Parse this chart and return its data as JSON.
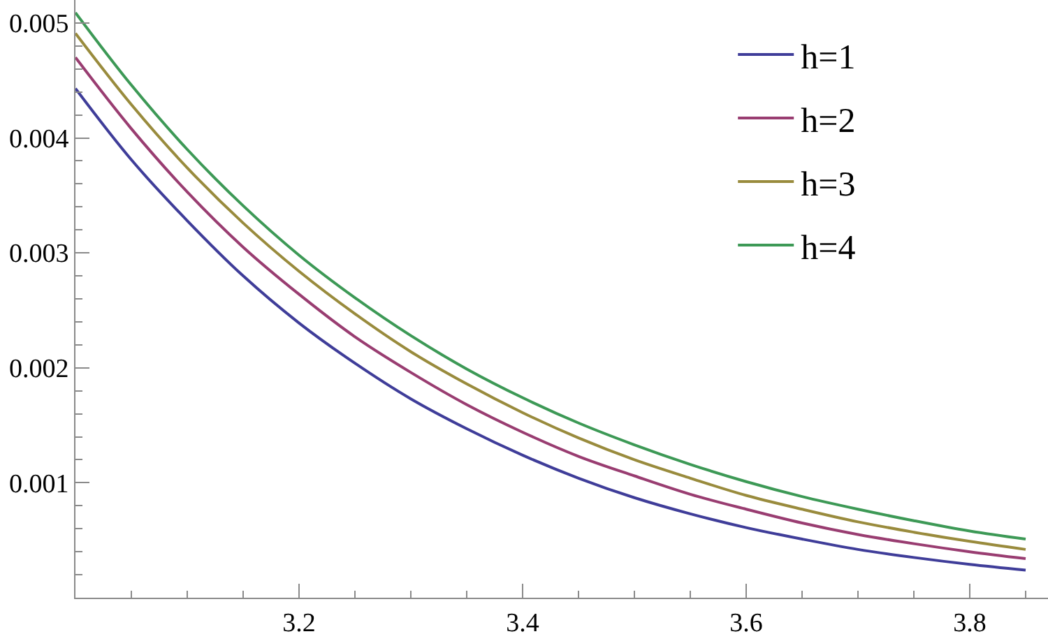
{
  "chart_data": {
    "type": "line",
    "x": [
      3.0,
      3.05,
      3.1,
      3.15,
      3.2,
      3.25,
      3.3,
      3.35,
      3.4,
      3.45,
      3.5,
      3.55,
      3.6,
      3.65,
      3.7,
      3.75,
      3.8,
      3.85
    ],
    "series": [
      {
        "name": "h=1",
        "color": "#3f3d99",
        "values": [
          0.00443,
          0.00381,
          0.00328,
          0.0028,
          0.00239,
          0.00204,
          0.00173,
          0.00147,
          0.00124,
          0.00104,
          0.00087,
          0.00073,
          0.00061,
          0.00051,
          0.00042,
          0.00035,
          0.00029,
          0.00024
        ]
      },
      {
        "name": "h=2",
        "color": "#993d71",
        "values": [
          0.0047,
          0.00408,
          0.00353,
          0.00305,
          0.00264,
          0.00227,
          0.00196,
          0.00168,
          0.00144,
          0.00123,
          0.00106,
          0.0009,
          0.00077,
          0.00065,
          0.00055,
          0.00047,
          0.0004,
          0.00034
        ]
      },
      {
        "name": "h=3",
        "color": "#998b3d",
        "values": [
          0.00491,
          0.00429,
          0.00374,
          0.00326,
          0.00284,
          0.00247,
          0.00214,
          0.00186,
          0.00161,
          0.00139,
          0.0012,
          0.00104,
          0.00089,
          0.00077,
          0.00066,
          0.00057,
          0.00049,
          0.00042
        ]
      },
      {
        "name": "h=4",
        "color": "#3d9956",
        "values": [
          0.00509,
          0.00446,
          0.0039,
          0.00341,
          0.00298,
          0.00261,
          0.00228,
          0.00199,
          0.00174,
          0.00152,
          0.00133,
          0.00116,
          0.00101,
          0.00088,
          0.00077,
          0.00067,
          0.00058,
          0.00051
        ]
      }
    ],
    "xlim": [
      3.0,
      3.87
    ],
    "ylim": [
      0,
      0.0052
    ],
    "xticks": [
      {
        "value": 3.05,
        "label": null
      },
      {
        "value": 3.1,
        "label": null
      },
      {
        "value": 3.15,
        "label": null
      },
      3.2,
      {
        "value": 3.25,
        "label": null
      },
      {
        "value": 3.3,
        "label": null
      },
      {
        "value": 3.35,
        "label": null
      },
      3.4,
      {
        "value": 3.45,
        "label": null
      },
      {
        "value": 3.5,
        "label": null
      },
      {
        "value": 3.55,
        "label": null
      },
      3.6,
      {
        "value": 3.65,
        "label": null
      },
      {
        "value": 3.7,
        "label": null
      },
      {
        "value": 3.75,
        "label": null
      },
      3.8,
      {
        "value": 3.85,
        "label": null
      }
    ],
    "yticks": [
      {
        "value": 0.0002,
        "label": null
      },
      {
        "value": 0.0004,
        "label": null
      },
      {
        "value": 0.0006,
        "label": null
      },
      {
        "value": 0.0008,
        "label": null
      },
      0.001,
      {
        "value": 0.0012,
        "label": null
      },
      {
        "value": 0.0014,
        "label": null
      },
      {
        "value": 0.0016,
        "label": null
      },
      {
        "value": 0.0018,
        "label": null
      },
      0.002,
      {
        "value": 0.0022,
        "label": null
      },
      {
        "value": 0.0024,
        "label": null
      },
      {
        "value": 0.0026,
        "label": null
      },
      {
        "value": 0.0028,
        "label": null
      },
      0.003,
      {
        "value": 0.0032,
        "label": null
      },
      {
        "value": 0.0034,
        "label": null
      },
      {
        "value": 0.0036,
        "label": null
      },
      {
        "value": 0.0038,
        "label": null
      },
      0.004,
      {
        "value": 0.0042,
        "label": null
      },
      {
        "value": 0.0044,
        "label": null
      },
      {
        "value": 0.0046,
        "label": null
      },
      {
        "value": 0.0048,
        "label": null
      },
      0.005
    ],
    "legend": "top right"
  }
}
